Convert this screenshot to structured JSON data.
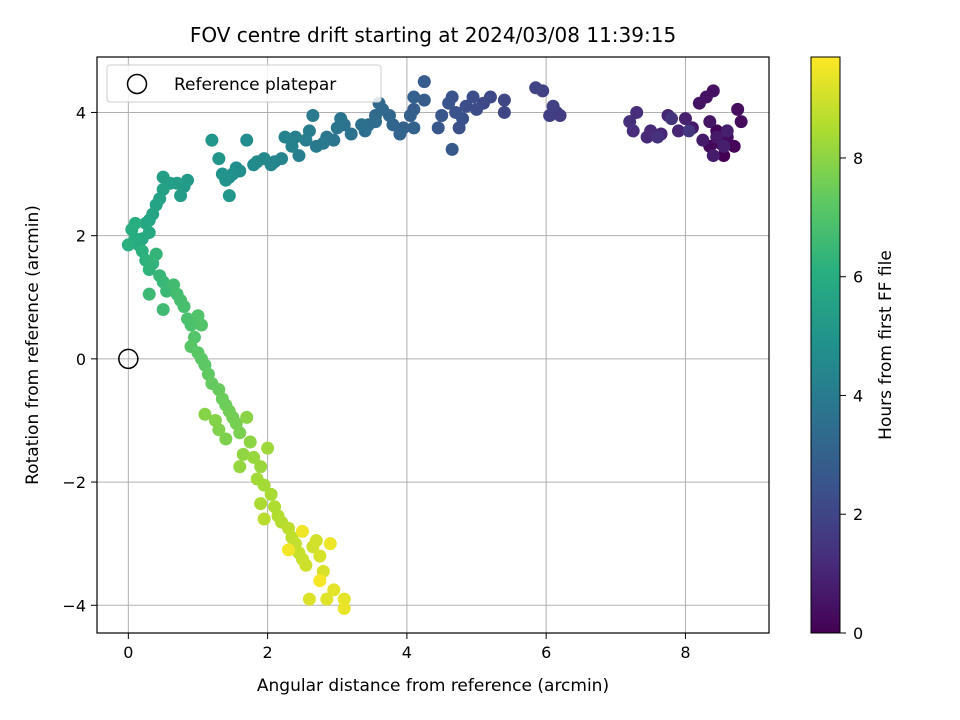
{
  "chart_data": {
    "type": "scatter",
    "title": "FOV centre drift starting at 2024/03/08 11:39:15",
    "xlabel": "Angular distance from reference (arcmin)",
    "ylabel": "Rotation from reference (arcmin)",
    "xlim": [
      -0.45,
      9.2
    ],
    "ylim": [
      -4.45,
      4.9
    ],
    "xticks": [
      0,
      2,
      4,
      6,
      8
    ],
    "yticks": [
      -4,
      -2,
      0,
      2,
      4
    ],
    "xtick_labels": [
      "0",
      "2",
      "4",
      "6",
      "8"
    ],
    "ytick_labels": [
      "−4",
      "−2",
      "0",
      "2",
      "4"
    ],
    "grid": true,
    "colormap": "viridis",
    "colorbar": {
      "label": "Hours from first FF file",
      "range": [
        0,
        9.7
      ],
      "ticks": [
        0,
        2,
        4,
        6,
        8
      ],
      "tick_labels": [
        "0",
        "2",
        "4",
        "6",
        "8"
      ]
    },
    "legend": {
      "position": "top-left",
      "entries": [
        {
          "label": "Reference platepar",
          "marker": "open-circle"
        }
      ]
    },
    "reference_point": {
      "x": 0,
      "y": 0
    },
    "series": [
      {
        "note": "points: [x, y, hours]",
        "points": [
          [
            8.55,
            3.3,
            0.0
          ],
          [
            8.7,
            3.45,
            0.05
          ],
          [
            8.5,
            3.5,
            0.1
          ],
          [
            8.45,
            3.7,
            0.15
          ],
          [
            8.35,
            3.45,
            0.2
          ],
          [
            8.6,
            3.6,
            0.25
          ],
          [
            8.8,
            3.85,
            0.3
          ],
          [
            8.75,
            4.05,
            0.35
          ],
          [
            8.4,
            4.35,
            0.4
          ],
          [
            8.3,
            4.25,
            0.45
          ],
          [
            8.2,
            4.15,
            0.5
          ],
          [
            8.35,
            3.85,
            0.55
          ],
          [
            8.1,
            3.75,
            0.6
          ],
          [
            8.45,
            3.6,
            0.65
          ],
          [
            8.25,
            3.55,
            0.7
          ],
          [
            8.4,
            3.3,
            0.75
          ],
          [
            8.55,
            3.45,
            0.8
          ],
          [
            8.6,
            3.7,
            0.85
          ],
          [
            8.0,
            3.9,
            0.9
          ],
          [
            7.9,
            3.7,
            0.95
          ],
          [
            7.75,
            3.95,
            1.0
          ],
          [
            7.65,
            3.65,
            1.05
          ],
          [
            7.5,
            3.7,
            1.1
          ],
          [
            7.45,
            3.6,
            1.15
          ],
          [
            7.25,
            3.7,
            1.2
          ],
          [
            7.3,
            4.0,
            1.25
          ],
          [
            7.2,
            3.85,
            1.3
          ],
          [
            7.6,
            3.6,
            1.35
          ],
          [
            7.8,
            3.9,
            1.4
          ],
          [
            8.05,
            3.7,
            1.5
          ],
          [
            6.2,
            3.95,
            1.7
          ],
          [
            6.15,
            4.0,
            1.75
          ],
          [
            6.05,
            3.95,
            1.8
          ],
          [
            6.1,
            4.1,
            1.85
          ],
          [
            5.95,
            4.35,
            1.9
          ],
          [
            5.85,
            4.4,
            1.95
          ],
          [
            5.4,
            4.0,
            2.0
          ],
          [
            5.4,
            4.2,
            2.05
          ],
          [
            5.2,
            4.25,
            2.1
          ],
          [
            5.1,
            4.15,
            2.15
          ],
          [
            5.0,
            4.05,
            2.2
          ],
          [
            4.95,
            4.25,
            2.25
          ],
          [
            4.85,
            4.1,
            2.3
          ],
          [
            4.75,
            3.75,
            2.35
          ],
          [
            4.8,
            3.9,
            2.4
          ],
          [
            4.7,
            4.0,
            2.45
          ],
          [
            4.65,
            4.25,
            2.5
          ],
          [
            4.6,
            4.15,
            2.55
          ],
          [
            4.5,
            3.95,
            2.6
          ],
          [
            4.45,
            3.75,
            2.65
          ],
          [
            4.65,
            3.4,
            2.7
          ],
          [
            4.25,
            4.5,
            2.75
          ],
          [
            4.25,
            4.2,
            2.8
          ],
          [
            4.1,
            4.05,
            2.85
          ],
          [
            4.1,
            4.25,
            2.9
          ],
          [
            4.05,
            3.95,
            2.95
          ],
          [
            3.95,
            3.75,
            3.0
          ],
          [
            4.1,
            3.75,
            3.05
          ],
          [
            3.9,
            3.65,
            3.1
          ],
          [
            3.8,
            3.8,
            3.15
          ],
          [
            3.75,
            3.95,
            3.2
          ],
          [
            3.65,
            4.05,
            3.25
          ],
          [
            3.6,
            4.15,
            3.3
          ],
          [
            3.55,
            3.95,
            3.35
          ],
          [
            3.55,
            3.85,
            3.4
          ],
          [
            3.45,
            3.8,
            3.45
          ],
          [
            3.4,
            3.7,
            3.5
          ],
          [
            3.35,
            3.8,
            3.55
          ],
          [
            3.2,
            3.65,
            3.6
          ],
          [
            3.1,
            3.8,
            3.65
          ],
          [
            3.05,
            3.9,
            3.7
          ],
          [
            3.0,
            3.75,
            3.75
          ],
          [
            2.95,
            3.55,
            3.8
          ],
          [
            2.85,
            3.6,
            3.85
          ],
          [
            2.8,
            3.5,
            3.9
          ],
          [
            2.7,
            3.45,
            3.95
          ],
          [
            2.65,
            3.95,
            4.0
          ],
          [
            2.6,
            3.7,
            4.05
          ],
          [
            2.55,
            3.55,
            4.1
          ],
          [
            2.45,
            3.3,
            4.15
          ],
          [
            2.4,
            3.6,
            4.2
          ],
          [
            2.35,
            3.45,
            4.25
          ],
          [
            2.25,
            3.6,
            4.3
          ],
          [
            2.2,
            3.25,
            4.35
          ],
          [
            2.1,
            3.2,
            4.4
          ],
          [
            2.05,
            3.15,
            4.45
          ],
          [
            1.95,
            3.25,
            4.5
          ],
          [
            1.85,
            3.2,
            4.55
          ],
          [
            1.8,
            3.15,
            4.6
          ],
          [
            1.7,
            3.55,
            4.65
          ],
          [
            1.6,
            3.05,
            4.7
          ],
          [
            1.55,
            3.1,
            4.75
          ],
          [
            1.5,
            3.0,
            4.8
          ],
          [
            1.45,
            2.95,
            4.85
          ],
          [
            1.4,
            2.9,
            4.9
          ],
          [
            1.35,
            3.0,
            4.95
          ],
          [
            1.3,
            3.25,
            5.0
          ],
          [
            1.2,
            3.55,
            5.05
          ],
          [
            1.45,
            2.65,
            5.1
          ],
          [
            0.85,
            2.9,
            5.2
          ],
          [
            0.8,
            2.8,
            5.25
          ],
          [
            0.75,
            2.65,
            5.3
          ],
          [
            0.7,
            2.85,
            5.35
          ],
          [
            0.6,
            2.85,
            5.4
          ],
          [
            0.5,
            2.95,
            5.45
          ],
          [
            0.5,
            2.75,
            5.5
          ],
          [
            0.45,
            2.6,
            5.55
          ],
          [
            0.4,
            2.5,
            5.6
          ],
          [
            0.35,
            2.35,
            5.65
          ],
          [
            0.3,
            2.25,
            5.7
          ],
          [
            0.25,
            2.2,
            5.75
          ],
          [
            0.3,
            2.05,
            5.8
          ],
          [
            0.2,
            1.95,
            5.85
          ],
          [
            0.15,
            1.85,
            5.9
          ],
          [
            0.1,
            1.95,
            5.95
          ],
          [
            0.05,
            2.1,
            6.0
          ],
          [
            0.1,
            2.2,
            6.05
          ],
          [
            0.0,
            1.85,
            6.1
          ],
          [
            0.2,
            1.75,
            6.15
          ],
          [
            0.25,
            1.6,
            6.2
          ],
          [
            0.3,
            1.45,
            6.25
          ],
          [
            0.35,
            1.55,
            6.3
          ],
          [
            0.4,
            1.7,
            6.35
          ],
          [
            0.45,
            1.35,
            6.4
          ],
          [
            0.5,
            1.25,
            6.45
          ],
          [
            0.55,
            1.1,
            6.5
          ],
          [
            0.3,
            1.05,
            6.55
          ],
          [
            0.5,
            0.8,
            6.6
          ],
          [
            0.65,
            1.2,
            6.65
          ],
          [
            0.7,
            1.05,
            6.7
          ],
          [
            0.75,
            0.95,
            6.75
          ],
          [
            0.8,
            0.85,
            6.8
          ],
          [
            0.85,
            0.65,
            6.85
          ],
          [
            0.9,
            0.55,
            6.9
          ],
          [
            1.0,
            0.7,
            6.95
          ],
          [
            1.05,
            0.55,
            7.0
          ],
          [
            0.95,
            0.35,
            7.05
          ],
          [
            0.9,
            0.2,
            7.1
          ],
          [
            1.0,
            0.1,
            7.15
          ],
          [
            1.05,
            0.0,
            7.2
          ],
          [
            1.1,
            -0.1,
            7.25
          ],
          [
            1.15,
            -0.25,
            7.3
          ],
          [
            1.2,
            -0.4,
            7.35
          ],
          [
            1.3,
            -0.5,
            7.4
          ],
          [
            1.35,
            -0.65,
            7.45
          ],
          [
            1.4,
            -0.75,
            7.5
          ],
          [
            1.45,
            -0.85,
            7.55
          ],
          [
            1.5,
            -0.95,
            7.6
          ],
          [
            1.55,
            -1.05,
            7.65
          ],
          [
            1.6,
            -1.2,
            7.7
          ],
          [
            1.4,
            -1.3,
            7.75
          ],
          [
            1.3,
            -1.15,
            7.8
          ],
          [
            1.25,
            -1.0,
            7.85
          ],
          [
            1.1,
            -0.9,
            7.9
          ],
          [
            1.7,
            -0.95,
            7.95
          ],
          [
            1.75,
            -1.35,
            8.0
          ],
          [
            1.65,
            -1.55,
            8.05
          ],
          [
            1.6,
            -1.75,
            8.1
          ],
          [
            1.8,
            -1.6,
            8.15
          ],
          [
            1.9,
            -1.75,
            8.2
          ],
          [
            2.0,
            -1.45,
            8.25
          ],
          [
            1.85,
            -1.95,
            8.3
          ],
          [
            1.95,
            -2.05,
            8.35
          ],
          [
            2.05,
            -2.2,
            8.4
          ],
          [
            1.9,
            -2.35,
            8.45
          ],
          [
            2.1,
            -2.4,
            8.5
          ],
          [
            2.15,
            -2.55,
            8.55
          ],
          [
            2.2,
            -2.65,
            8.6
          ],
          [
            1.95,
            -2.6,
            8.65
          ],
          [
            2.3,
            -2.75,
            8.7
          ],
          [
            2.35,
            -2.9,
            8.75
          ],
          [
            2.4,
            -3.0,
            8.8
          ],
          [
            2.45,
            -3.15,
            8.85
          ],
          [
            2.5,
            -3.25,
            8.9
          ],
          [
            2.55,
            -3.35,
            8.95
          ],
          [
            2.65,
            -3.05,
            9.0
          ],
          [
            2.7,
            -2.95,
            9.05
          ],
          [
            2.75,
            -3.2,
            9.1
          ],
          [
            2.8,
            -3.45,
            9.15
          ],
          [
            2.6,
            -3.9,
            9.2
          ],
          [
            2.85,
            -3.9,
            9.25
          ],
          [
            2.95,
            -3.75,
            9.3
          ],
          [
            3.1,
            -3.9,
            9.35
          ],
          [
            3.1,
            -4.05,
            9.4
          ],
          [
            2.9,
            -3.0,
            9.45
          ],
          [
            2.5,
            -2.8,
            9.5
          ],
          [
            2.3,
            -3.1,
            9.55
          ],
          [
            2.75,
            -3.6,
            9.6
          ]
        ]
      }
    ]
  }
}
